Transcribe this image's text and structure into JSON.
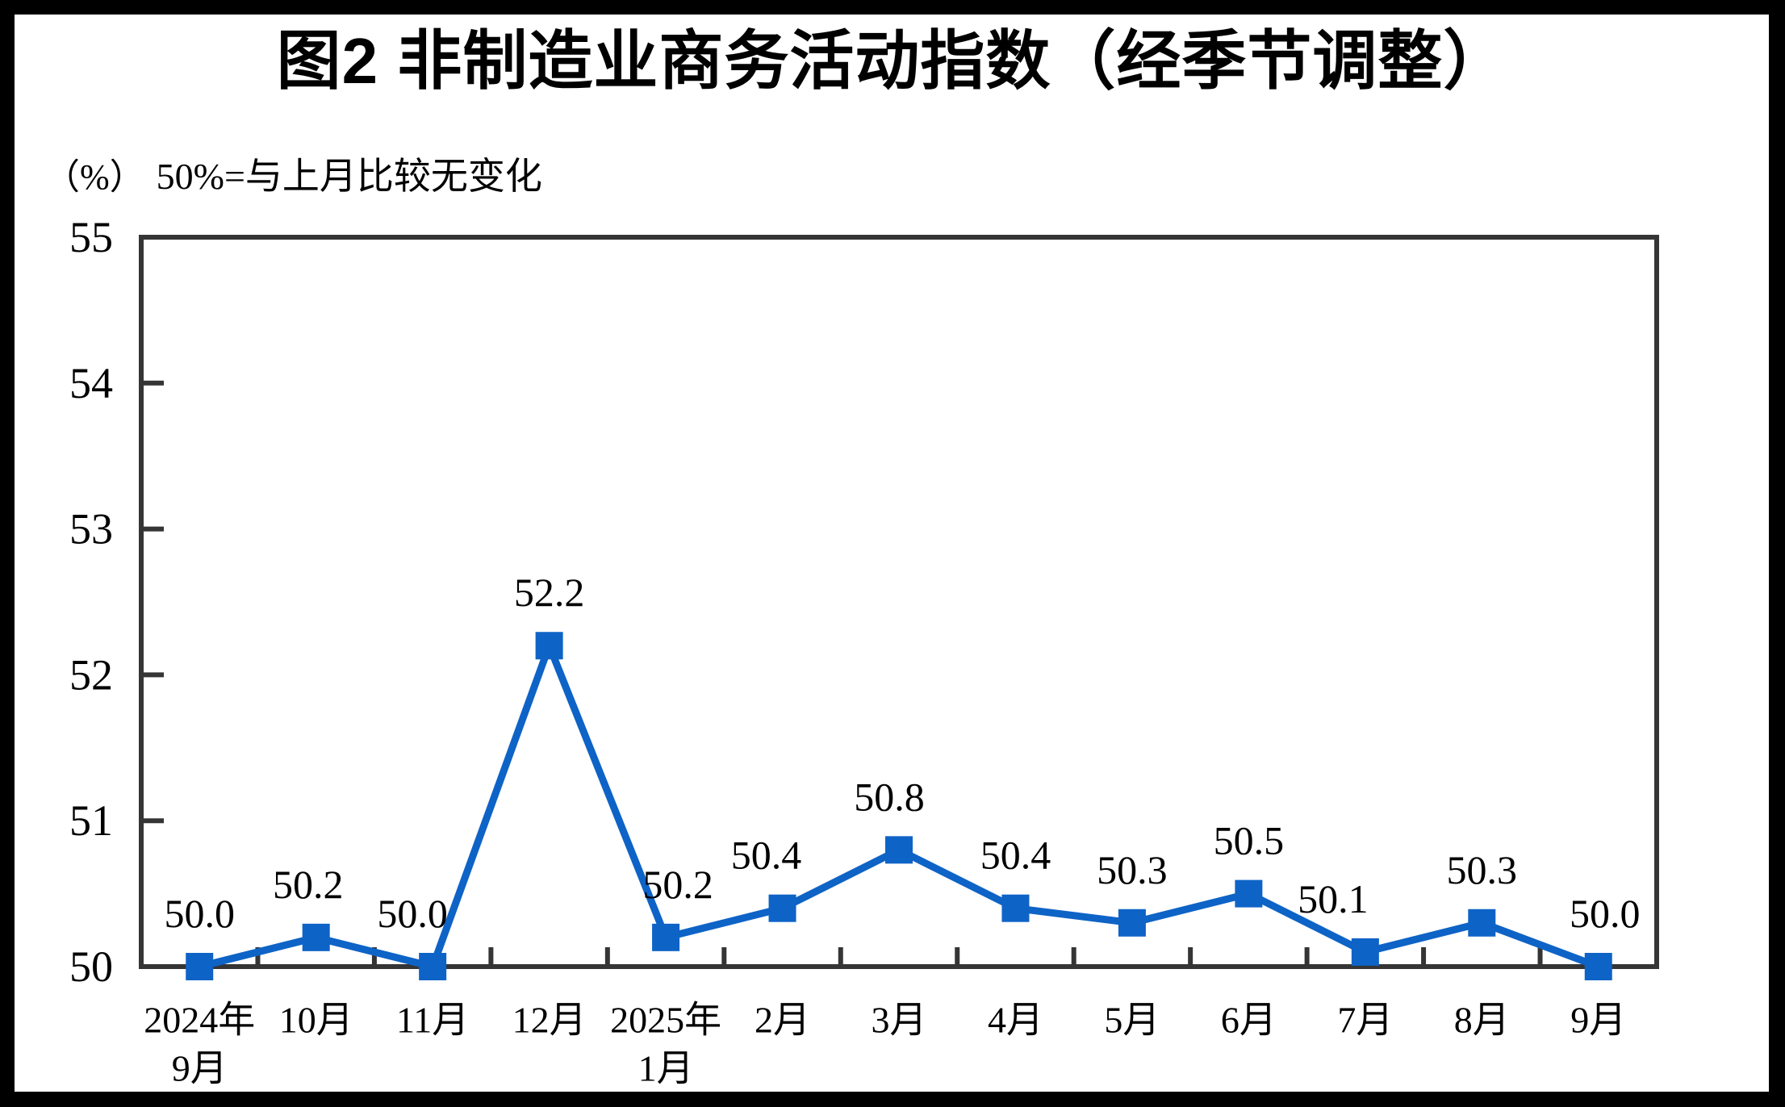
{
  "chart_data": {
    "type": "line",
    "title": "图2 非制造业商务活动指数（经季节调整）",
    "unit_label": "（%）",
    "note": "50%=与上月比较无变化",
    "categories": [
      [
        "2024年",
        "9月"
      ],
      [
        "10月"
      ],
      [
        "11月"
      ],
      [
        "12月"
      ],
      [
        "2025年",
        "1月"
      ],
      [
        "2月"
      ],
      [
        "3月"
      ],
      [
        "4月"
      ],
      [
        "5月"
      ],
      [
        "6月"
      ],
      [
        "7月"
      ],
      [
        "8月"
      ],
      [
        "9月"
      ]
    ],
    "values": [
      50.0,
      50.2,
      50.0,
      52.2,
      50.2,
      50.4,
      50.8,
      50.4,
      50.3,
      50.5,
      50.1,
      50.3,
      50.0
    ],
    "data_labels": [
      "50.0",
      "50.2",
      "50.0",
      "52.2",
      "50.2",
      "50.4",
      "50.8",
      "50.4",
      "50.3",
      "50.5",
      "50.1",
      "50.3",
      "50.0"
    ],
    "ylim": [
      50,
      55
    ],
    "ytick_step": 1,
    "ytick_labels": [
      "50",
      "51",
      "52",
      "53",
      "54",
      "55"
    ],
    "series_color": "#0E63C6",
    "axis_color": "#353535",
    "text_color": "#000000",
    "marker": "square",
    "grid": false,
    "legend": null
  }
}
